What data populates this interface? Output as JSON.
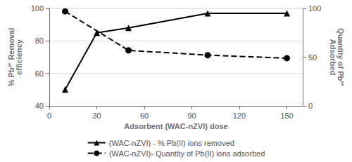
{
  "chart_data": {
    "type": "line",
    "xlabel": "Adsorbent (WAC-nZVI) dose",
    "ylabel": "% Pb²⁺ Removal\nefficiency",
    "y2label": "Quantity of Pb²⁺\nAdsorbed",
    "xlim": [
      0,
      160
    ],
    "xticks": [
      0,
      30,
      60,
      90,
      120,
      150
    ],
    "ylim": [
      40,
      100
    ],
    "yticks": [
      40,
      60,
      80,
      100
    ],
    "y2lim": [
      0,
      100
    ],
    "y2ticks": [
      0,
      50,
      100
    ],
    "grid": true,
    "legend": "bottom",
    "series": [
      {
        "name": "(WAC-nZVI) - % Pb(II) ions removed",
        "color": "black",
        "marker": "triangle",
        "line_style": "solid",
        "x": [
          10,
          30,
          50,
          100,
          150
        ],
        "values": [
          50,
          85,
          88,
          97,
          97
        ]
      },
      {
        "name": "(WAC-nZVI)- Quantity of Pb(II) ions adsorbed",
        "color": "black",
        "marker": "circle",
        "line_style": "dashed",
        "axis": "y2",
        "x": [
          10,
          50,
          100,
          150
        ],
        "values": [
          97,
          57,
          52,
          49
        ]
      }
    ]
  }
}
